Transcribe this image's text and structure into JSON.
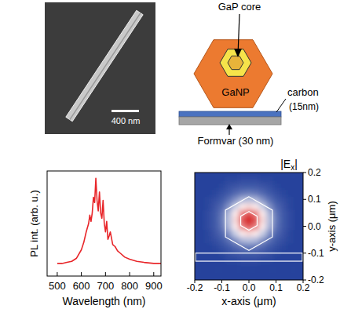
{
  "sem": {
    "scale_bar_label": "400 nm"
  },
  "schematic": {
    "core_label": "GaP core",
    "shell_label": "GaNP",
    "carbon_label": "carbon",
    "carbon_thickness": "(15nm)",
    "formvar_label": "Formvar (30 nm)"
  },
  "chart_data": [
    {
      "type": "line",
      "x_label": "Wavelength (nm)",
      "y_label": "PL int. (arb. u.)",
      "color": "#e8262a",
      "x": [
        500,
        520,
        540,
        560,
        580,
        600,
        610,
        620,
        630,
        635,
        640,
        645,
        650,
        655,
        660,
        665,
        670,
        675,
        680,
        685,
        690,
        695,
        700,
        705,
        710,
        715,
        720,
        730,
        740,
        750,
        760,
        780,
        800,
        830,
        860,
        900,
        930
      ],
      "values": [
        0.12,
        0.12,
        0.13,
        0.14,
        0.17,
        0.25,
        0.32,
        0.42,
        0.5,
        0.58,
        0.52,
        0.6,
        0.75,
        0.7,
        0.93,
        0.72,
        0.62,
        0.8,
        0.6,
        0.55,
        0.72,
        0.5,
        0.42,
        0.52,
        0.35,
        0.38,
        0.42,
        0.3,
        0.28,
        0.24,
        0.22,
        0.18,
        0.16,
        0.14,
        0.13,
        0.12,
        0.12
      ],
      "xlim": [
        458,
        930
      ],
      "xticks": [
        500,
        600,
        700,
        800,
        900
      ],
      "ylim": [
        0,
        1
      ],
      "tick_labels": "x"
    },
    {
      "type": "heatmap",
      "title": "|Ex|",
      "x_label": "x-axis (μm)",
      "y_label": "y-axis (μm)",
      "x": [
        -0.2,
        -0.175,
        -0.15,
        -0.125,
        -0.1,
        -0.075,
        -0.05,
        -0.025,
        0,
        0.025,
        0.05,
        0.075,
        0.1,
        0.125,
        0.15,
        0.175,
        0.2
      ],
      "y": [
        -0.2,
        -0.175,
        -0.15,
        -0.125,
        -0.1,
        -0.075,
        -0.05,
        -0.025,
        0,
        0.025,
        0.05,
        0.075,
        0.1,
        0.125,
        0.15,
        0.175,
        0.2
      ],
      "cells": [
        [
          0,
          0,
          0,
          0,
          0,
          0,
          0,
          0,
          0,
          0,
          0,
          0,
          0,
          0,
          0,
          0,
          0
        ],
        [
          0,
          0,
          0,
          0,
          0,
          0,
          0,
          0,
          0,
          0,
          0,
          0,
          0,
          0,
          0,
          0,
          0
        ],
        [
          0,
          0,
          0,
          0,
          0,
          0,
          0,
          0,
          0,
          0,
          0,
          0,
          0,
          0,
          0,
          0,
          0
        ],
        [
          0,
          0,
          0,
          0,
          0,
          0.01,
          0.01,
          0.02,
          0.02,
          0.02,
          0.01,
          0.01,
          0,
          0,
          0,
          0,
          0
        ],
        [
          0,
          0,
          0,
          0,
          0.01,
          0.03,
          0.04,
          0.05,
          0.05,
          0.05,
          0.04,
          0.03,
          0.01,
          0,
          0,
          0,
          0
        ],
        [
          0,
          0,
          0,
          0.01,
          0.03,
          0.05,
          0.08,
          0.11,
          0.12,
          0.11,
          0.08,
          0.05,
          0.03,
          0.01,
          0,
          0,
          0
        ],
        [
          0,
          0,
          0.01,
          0.03,
          0.05,
          0.1,
          0.17,
          0.25,
          0.27,
          0.25,
          0.17,
          0.1,
          0.05,
          0.03,
          0.01,
          0,
          0
        ],
        [
          0,
          0,
          0.01,
          0.04,
          0.08,
          0.17,
          0.3,
          0.45,
          0.5,
          0.45,
          0.3,
          0.17,
          0.08,
          0.04,
          0.01,
          0,
          0
        ],
        [
          0,
          0,
          0.02,
          0.05,
          0.11,
          0.25,
          0.45,
          0.72,
          0.85,
          0.72,
          0.45,
          0.25,
          0.11,
          0.05,
          0.02,
          0,
          0
        ],
        [
          0,
          0,
          0.02,
          0.05,
          0.12,
          0.27,
          0.5,
          0.85,
          1,
          0.85,
          0.5,
          0.27,
          0.12,
          0.05,
          0.02,
          0,
          0
        ],
        [
          0,
          0,
          0.02,
          0.05,
          0.11,
          0.25,
          0.45,
          0.72,
          0.85,
          0.72,
          0.45,
          0.25,
          0.11,
          0.05,
          0.02,
          0,
          0
        ],
        [
          0,
          0,
          0.01,
          0.04,
          0.08,
          0.17,
          0.3,
          0.45,
          0.5,
          0.45,
          0.3,
          0.17,
          0.08,
          0.04,
          0.01,
          0,
          0
        ],
        [
          0,
          0,
          0.01,
          0.03,
          0.05,
          0.1,
          0.17,
          0.25,
          0.27,
          0.25,
          0.17,
          0.1,
          0.05,
          0.03,
          0.01,
          0,
          0
        ],
        [
          0,
          0,
          0,
          0.01,
          0.03,
          0.05,
          0.08,
          0.11,
          0.12,
          0.11,
          0.08,
          0.05,
          0.03,
          0.01,
          0,
          0,
          0
        ],
        [
          0,
          0,
          0,
          0,
          0.01,
          0.03,
          0.04,
          0.05,
          0.05,
          0.05,
          0.04,
          0.03,
          0.01,
          0,
          0,
          0,
          0
        ],
        [
          0,
          0,
          0,
          0,
          0,
          0.01,
          0.01,
          0.02,
          0.02,
          0.02,
          0.01,
          0.01,
          0,
          0,
          0,
          0,
          0
        ],
        [
          0,
          0,
          0,
          0,
          0,
          0,
          0,
          0,
          0,
          0,
          0,
          0,
          0,
          0,
          0,
          0,
          0
        ]
      ],
      "xlim": [
        -0.2,
        0.2
      ],
      "ylim": [
        -0.2,
        0.2
      ],
      "xticks": [
        -0.2,
        -0.1,
        {
          "value": 0,
          "label": "0.0"
        },
        0.1,
        0.2
      ],
      "yticks": [
        -0.2,
        -0.1,
        {
          "value": 0,
          "label": "0.0"
        },
        0.1,
        0.2
      ]
    }
  ]
}
